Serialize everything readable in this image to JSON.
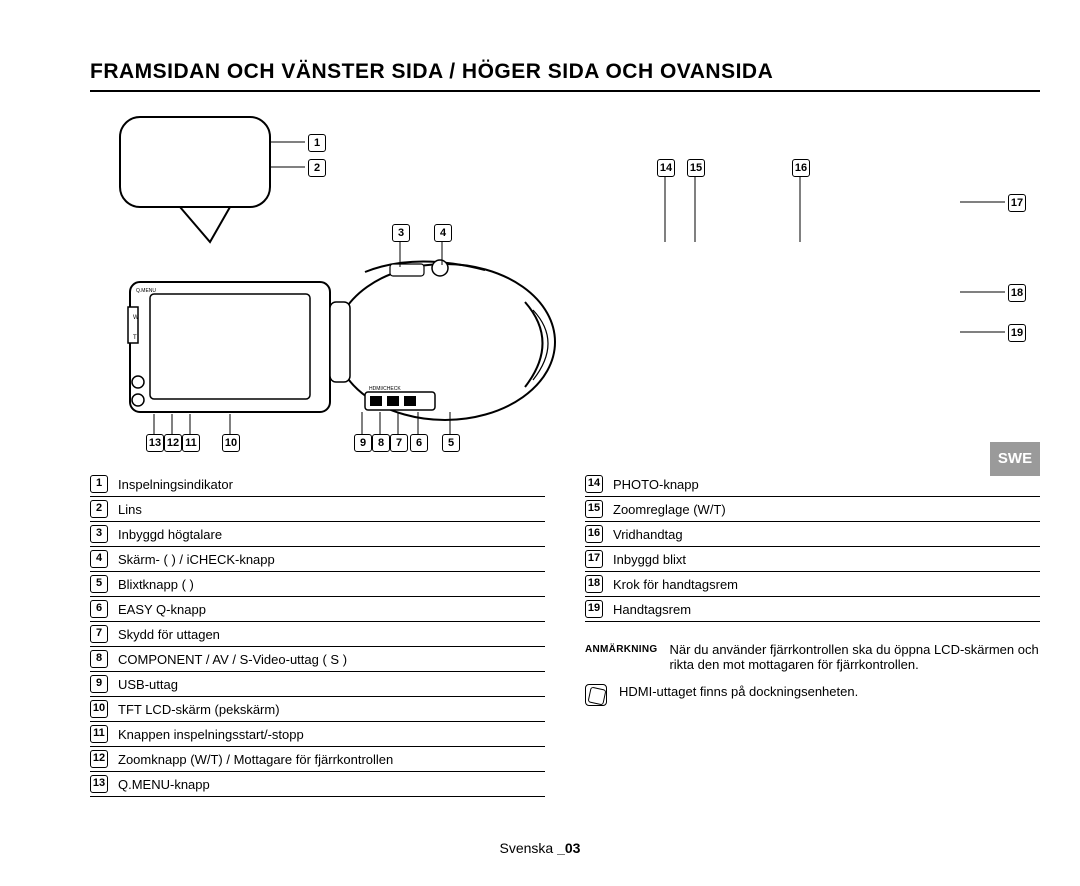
{
  "title": "FRAMSIDAN OCH VÄNSTER SIDA / HÖGER SIDA OCH OVANSIDA",
  "swe_tab": "SWE",
  "left_list": [
    {
      "n": "1",
      "label": "Inspelningsindikator"
    },
    {
      "n": "2",
      "label": "Lins"
    },
    {
      "n": "3",
      "label": "Inbyggd högtalare"
    },
    {
      "n": "4",
      "label": "Skärm- (      ) / iCHECK-knapp"
    },
    {
      "n": "5",
      "label": "Blixtknapp (      )"
    },
    {
      "n": "6",
      "label": "EASY Q-knapp"
    },
    {
      "n": "7",
      "label": "Skydd för uttagen"
    },
    {
      "n": "8",
      "label": "COMPONENT / AV / S-Video-uttag ( S )"
    },
    {
      "n": "9",
      "label": "USB-uttag"
    },
    {
      "n": "10",
      "label": "TFT LCD-skärm (pekskärm)"
    },
    {
      "n": "11",
      "label": "Knappen inspelningsstart/-stopp"
    },
    {
      "n": "12",
      "label": "Zoomknapp (W/T) / Mottagare för fjärrkontrollen"
    },
    {
      "n": "13",
      "label": "Q.MENU-knapp"
    }
  ],
  "right_list": [
    {
      "n": "14",
      "label": "PHOTO-knapp"
    },
    {
      "n": "15",
      "label": "Zoomreglage (W/T)"
    },
    {
      "n": "16",
      "label": "Vridhandtag"
    },
    {
      "n": "17",
      "label": "Inbyggd blixt"
    },
    {
      "n": "18",
      "label": "Krok för handtagsrem"
    },
    {
      "n": "19",
      "label": "Handtagsrem"
    }
  ],
  "note_label": "ANMÄRKNING",
  "note_text": "När du använder fjärrkontrollen ska du öppna LCD-skärmen och rikta den mot mottagaren för fjärrkontrollen.",
  "note2_text": "HDMI-uttaget finns på dockningsenheten.",
  "footer": {
    "lang": "Svenska",
    "page": "_03"
  },
  "callouts_left": [
    "1",
    "2",
    "3",
    "4",
    "5",
    "6",
    "7",
    "8",
    "9",
    "10",
    "11",
    "12",
    "13"
  ],
  "callouts_right": [
    "14",
    "15",
    "16",
    "17",
    "18",
    "19"
  ]
}
